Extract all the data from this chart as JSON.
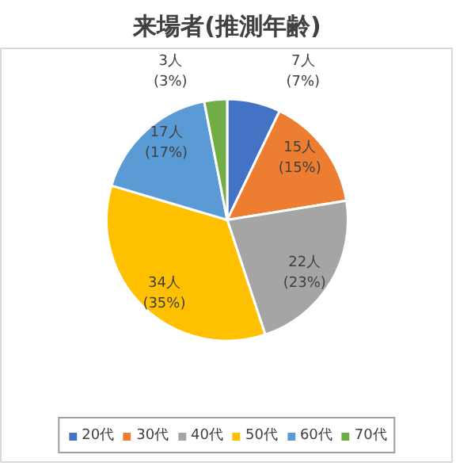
{
  "chart_data": {
    "type": "pie",
    "title": "来場者(推測年齢)",
    "categories": [
      "20代",
      "30代",
      "40代",
      "50代",
      "60代",
      "70代"
    ],
    "values": [
      7,
      15,
      22,
      34,
      17,
      3
    ],
    "colors": [
      "#4472c4",
      "#ed7d31",
      "#a5a5a5",
      "#ffc000",
      "#5b9bd5",
      "#70ad47"
    ],
    "value_labels": [
      "7人\n(7%)",
      "15人\n(15%)",
      "22人\n(23%)",
      "34人\n(35%)",
      "17人\n(17%)",
      "3人\n(3%)"
    ],
    "legend": "bottom"
  }
}
